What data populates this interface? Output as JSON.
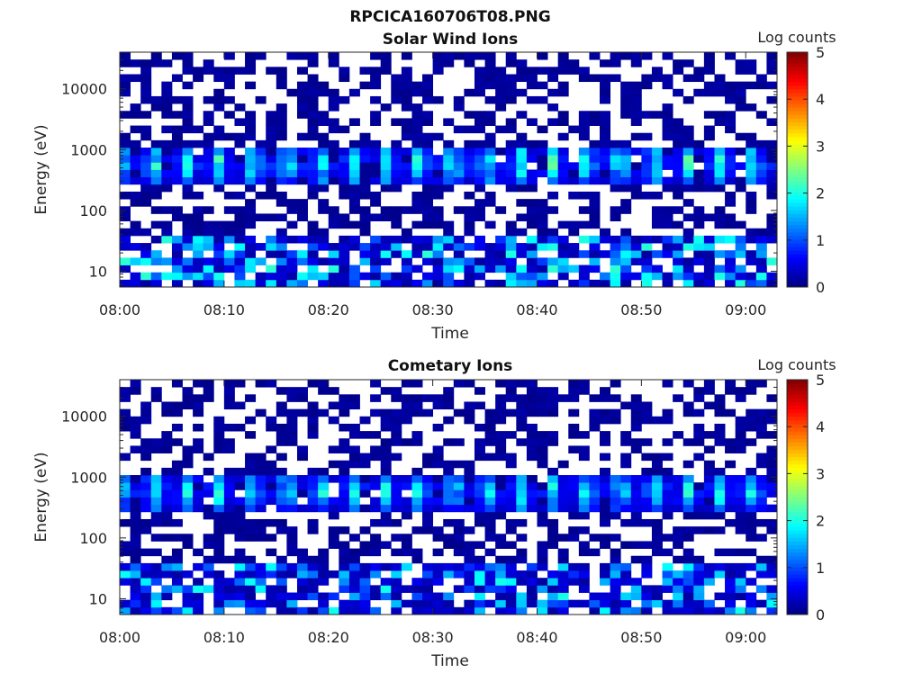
{
  "figure_title": "RPCICA160706T08.PNG",
  "colorbar": {
    "label": "Log counts",
    "ticks": [
      "0",
      "1",
      "2",
      "3",
      "4",
      "5"
    ],
    "range": [
      0,
      5
    ],
    "colormap": "jet"
  },
  "chart_data": [
    {
      "type": "heatmap",
      "title": "Solar Wind Ions",
      "xlabel": "Time",
      "ylabel": "Energy (eV)",
      "yscale": "log",
      "ylim": [
        5.5,
        40000
      ],
      "xlim": [
        "08:00",
        "09:03"
      ],
      "xticks": [
        "08:00",
        "08:10",
        "08:20",
        "08:30",
        "08:40",
        "08:50",
        "09:00"
      ],
      "yticks": [
        "10",
        "100",
        "1000",
        "10000"
      ],
      "xtick_values_min": [
        0,
        10,
        20,
        30,
        40,
        50,
        60
      ],
      "ytick_values": [
        10,
        100,
        1000,
        10000
      ],
      "time_bins": 63,
      "energy_bins": 32,
      "energy_range_eV": [
        5.5,
        40000
      ],
      "features": {
        "main_band_eV": [
          300,
          1200
        ],
        "main_band_peak_log_counts": 2.3,
        "main_band_period_min": 3.2,
        "low_energy_band_eV": [
          6,
          40
        ],
        "low_energy_peak_log_counts": 2.1
      },
      "seed": 7
    },
    {
      "type": "heatmap",
      "title": "Cometary Ions",
      "xlabel": "Time",
      "ylabel": "Energy (eV)",
      "yscale": "log",
      "ylim": [
        5.5,
        40000
      ],
      "xlim": [
        "08:00",
        "09:03"
      ],
      "xticks": [
        "08:00",
        "08:10",
        "08:20",
        "08:30",
        "08:40",
        "08:50",
        "09:00"
      ],
      "yticks": [
        "10",
        "100",
        "1000",
        "10000"
      ],
      "xtick_values_min": [
        0,
        10,
        20,
        30,
        40,
        50,
        60
      ],
      "ytick_values": [
        10,
        100,
        1000,
        10000
      ],
      "time_bins": 63,
      "energy_bins": 32,
      "energy_range_eV": [
        5.5,
        40000
      ],
      "features": {
        "main_band_eV": [
          300,
          1200
        ],
        "main_band_peak_log_counts": 2.1,
        "main_band_period_min": 3.2,
        "low_energy_band_eV": [
          6,
          40
        ],
        "low_energy_peak_log_counts": 2.0
      },
      "seed": 7
    }
  ]
}
